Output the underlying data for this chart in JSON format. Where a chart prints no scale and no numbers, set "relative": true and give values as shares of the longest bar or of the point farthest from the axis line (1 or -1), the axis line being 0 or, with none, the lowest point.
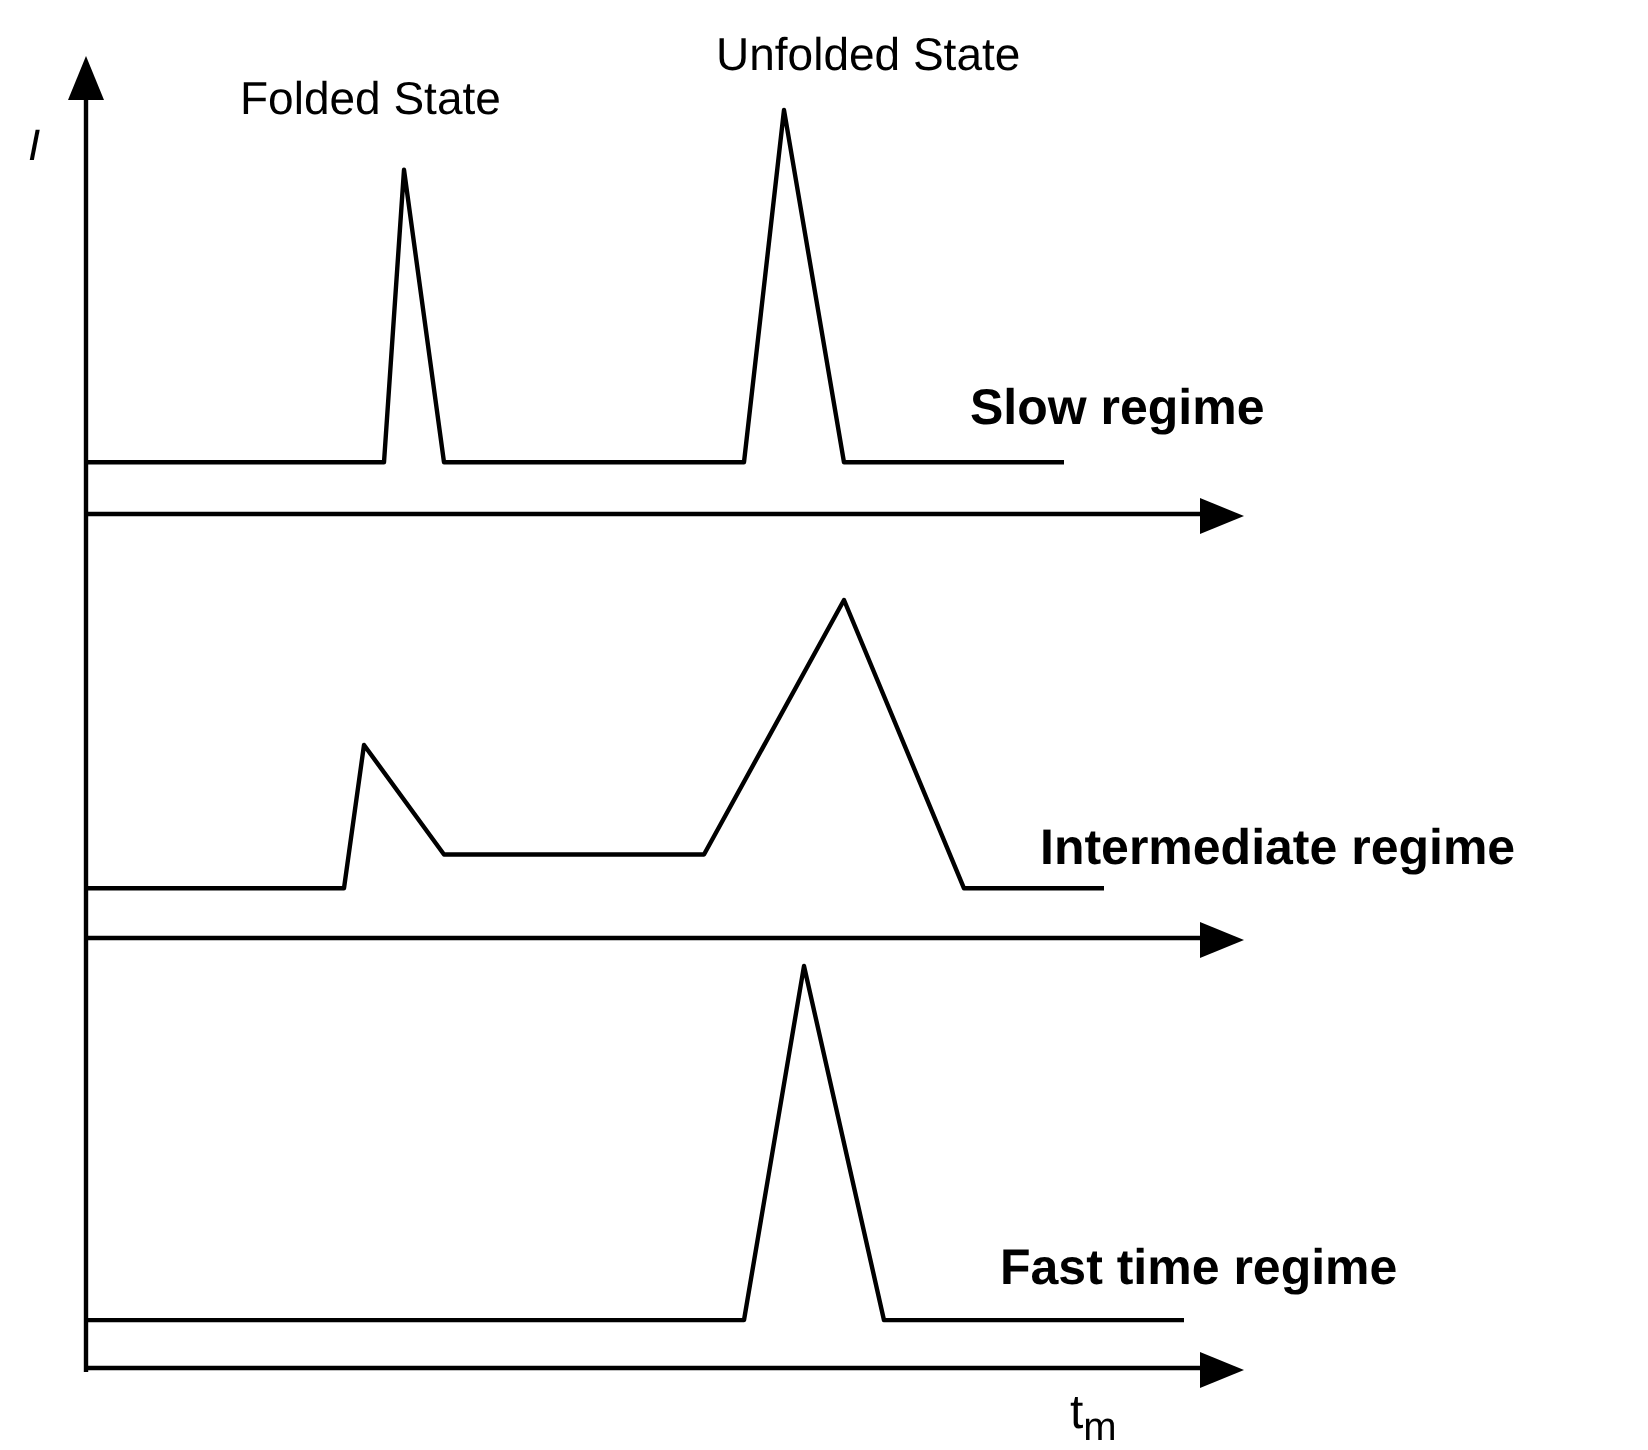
{
  "chart_data": [
    {
      "type": "line",
      "relative": true,
      "marker": "none",
      "ylabel": "I",
      "annotations": [
        "Folded State",
        "Unfolded State"
      ],
      "categories": [
        null,
        null,
        null,
        null,
        null,
        null,
        null,
        null,
        null,
        null,
        null,
        null,
        null,
        null,
        null,
        null,
        null,
        null,
        null,
        null,
        null,
        null,
        null,
        null,
        null,
        null,
        null,
        null,
        null,
        null,
        null,
        null,
        null,
        null,
        null,
        null,
        null,
        null,
        null,
        null,
        null,
        null,
        null,
        null,
        null,
        null,
        null,
        null,
        null,
        null,
        null,
        null,
        null,
        null,
        null,
        null,
        null
      ],
      "series": [
        {
          "name": "Slow regime",
          "color": "#000000",
          "values": [
            0.128,
            null,
            null,
            null,
            null,
            null,
            null,
            null,
            null,
            null,
            null,
            null,
            null,
            null,
            null,
            0.128,
            0.852,
            null,
            0.128,
            null,
            null,
            null,
            null,
            null,
            null,
            null,
            null,
            null,
            null,
            null,
            null,
            null,
            null,
            0.128,
            null,
            1,
            null,
            null,
            0.128,
            null,
            null,
            null,
            null,
            null,
            null,
            null,
            null,
            null,
            null,
            0.128,
            null,
            null,
            null,
            null,
            null,
            null,
            null
          ]
        }
      ]
    },
    {
      "type": "line",
      "relative": true,
      "marker": "none",
      "categories": [
        null,
        null,
        null,
        null,
        null,
        null,
        null,
        null,
        null,
        null,
        null,
        null,
        null,
        null,
        null,
        null,
        null,
        null,
        null,
        null,
        null,
        null,
        null,
        null,
        null,
        null,
        null,
        null,
        null,
        null,
        null,
        null,
        null,
        null,
        null,
        null,
        null,
        null,
        null,
        null,
        null,
        null,
        null,
        null,
        null,
        null,
        null,
        null,
        null,
        null,
        null,
        null,
        null,
        null,
        null,
        null,
        null
      ],
      "series": [
        {
          "name": "Intermediate regime",
          "color": "#000000",
          "values": [
            0.147,
            null,
            null,
            null,
            null,
            null,
            null,
            null,
            null,
            null,
            null,
            null,
            null,
            0.147,
            0.571,
            null,
            null,
            null,
            0.247,
            null,
            null,
            null,
            null,
            null,
            null,
            null,
            null,
            null,
            null,
            null,
            null,
            0.247,
            null,
            null,
            null,
            null,
            null,
            null,
            1,
            null,
            null,
            null,
            null,
            null,
            0.147,
            null,
            null,
            null,
            null,
            null,
            null,
            0.147,
            null,
            null,
            null,
            null,
            null
          ]
        }
      ]
    },
    {
      "type": "line",
      "relative": true,
      "marker": "none",
      "xlabel": "t$_{m}$",
      "categories": [
        null,
        null,
        null,
        null,
        null,
        null,
        null,
        null,
        null,
        null,
        null,
        null,
        null,
        null,
        null,
        null,
        null,
        null,
        null,
        null,
        null,
        null,
        null,
        null,
        null,
        null,
        null,
        null,
        null,
        null,
        null,
        null,
        null,
        null,
        null,
        null,
        null,
        null,
        null,
        null,
        null,
        null,
        null,
        null,
        null,
        null,
        null,
        null,
        null,
        null,
        null,
        null,
        null,
        null,
        null,
        null,
        null
      ],
      "series": [
        {
          "name": "Fast time regime",
          "color": "#000000",
          "values": [
            0.119,
            null,
            null,
            null,
            null,
            null,
            null,
            null,
            null,
            null,
            null,
            null,
            null,
            null,
            null,
            null,
            null,
            null,
            null,
            null,
            null,
            null,
            null,
            null,
            null,
            null,
            null,
            null,
            null,
            null,
            null,
            null,
            null,
            0.119,
            null,
            null,
            1,
            null,
            null,
            null,
            0.119,
            null,
            null,
            null,
            null,
            null,
            null,
            null,
            null,
            null,
            null,
            null,
            null,
            null,
            null,
            0.119,
            null
          ]
        }
      ]
    }
  ]
}
